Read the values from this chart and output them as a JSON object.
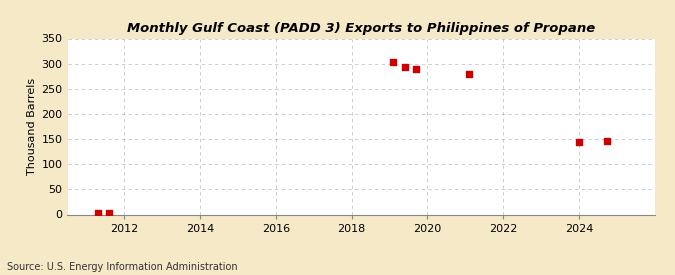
{
  "title": "Monthly Gulf Coast (PADD 3) Exports to Philippines of Propane",
  "ylabel": "Thousand Barrels",
  "source": "Source: U.S. Energy Information Administration",
  "outer_bg": "#f5e9c8",
  "plot_bg": "#ffffff",
  "grid_color": "#aaaaaa",
  "point_color": "#cc0000",
  "xlim": [
    2010.5,
    2026.0
  ],
  "ylim": [
    0,
    350
  ],
  "yticks": [
    0,
    50,
    100,
    150,
    200,
    250,
    300,
    350
  ],
  "xticks": [
    2012,
    2014,
    2016,
    2018,
    2020,
    2022,
    2024
  ],
  "data_points": [
    [
      2011.3,
      2
    ],
    [
      2011.6,
      2
    ],
    [
      2019.1,
      303
    ],
    [
      2019.4,
      293
    ],
    [
      2019.7,
      290
    ],
    [
      2021.1,
      279
    ],
    [
      2024.0,
      144
    ],
    [
      2024.75,
      146
    ]
  ]
}
